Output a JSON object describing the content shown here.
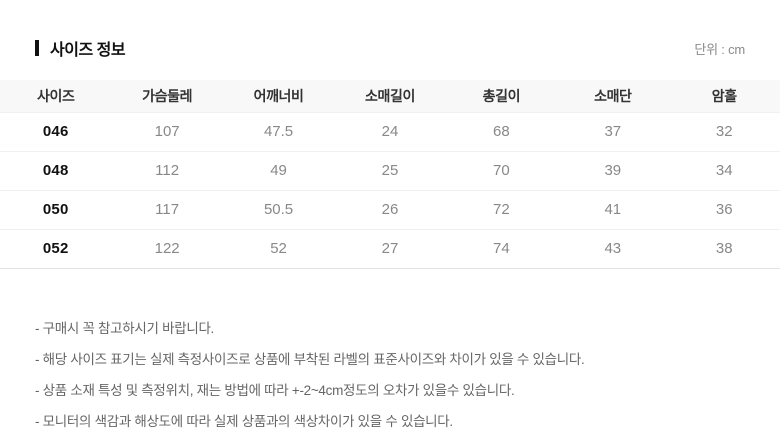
{
  "page": {
    "title": "사이즈 정보",
    "unit_label": "단위 : cm"
  },
  "table": {
    "columns": [
      "사이즈",
      "가슴둘레",
      "어깨너비",
      "소매길이",
      "총길이",
      "소매단",
      "암홀"
    ],
    "rows": [
      [
        "046",
        "107",
        "47.5",
        "24",
        "68",
        "37",
        "32"
      ],
      [
        "048",
        "112",
        "49",
        "25",
        "70",
        "39",
        "34"
      ],
      [
        "050",
        "117",
        "50.5",
        "26",
        "72",
        "41",
        "36"
      ],
      [
        "052",
        "122",
        "52",
        "27",
        "74",
        "43",
        "38"
      ]
    ]
  },
  "notes": [
    "- 구매시 꼭 참고하시기 바랍니다.",
    "- 해당 사이즈 표기는 실제 측정사이즈로 상품에 부착된 라벨의 표준사이즈와 차이가 있을 수 있습니다.",
    "- 상품 소재 특성 및 측정위치, 재는 방법에 따라 +-2~4cm정도의 오차가 있을수 있습니다.",
    "- 모니터의 색감과 해상도에 따라 실제 상품과의 색상차이가 있을 수 있습니다."
  ],
  "colors": {
    "title_text": "#111111",
    "header_bg": "#f8f8f8",
    "header_text": "#333333",
    "value_text": "#888888",
    "size_text": "#111111",
    "note_text": "#666666",
    "row_border": "#f0f0f0"
  }
}
